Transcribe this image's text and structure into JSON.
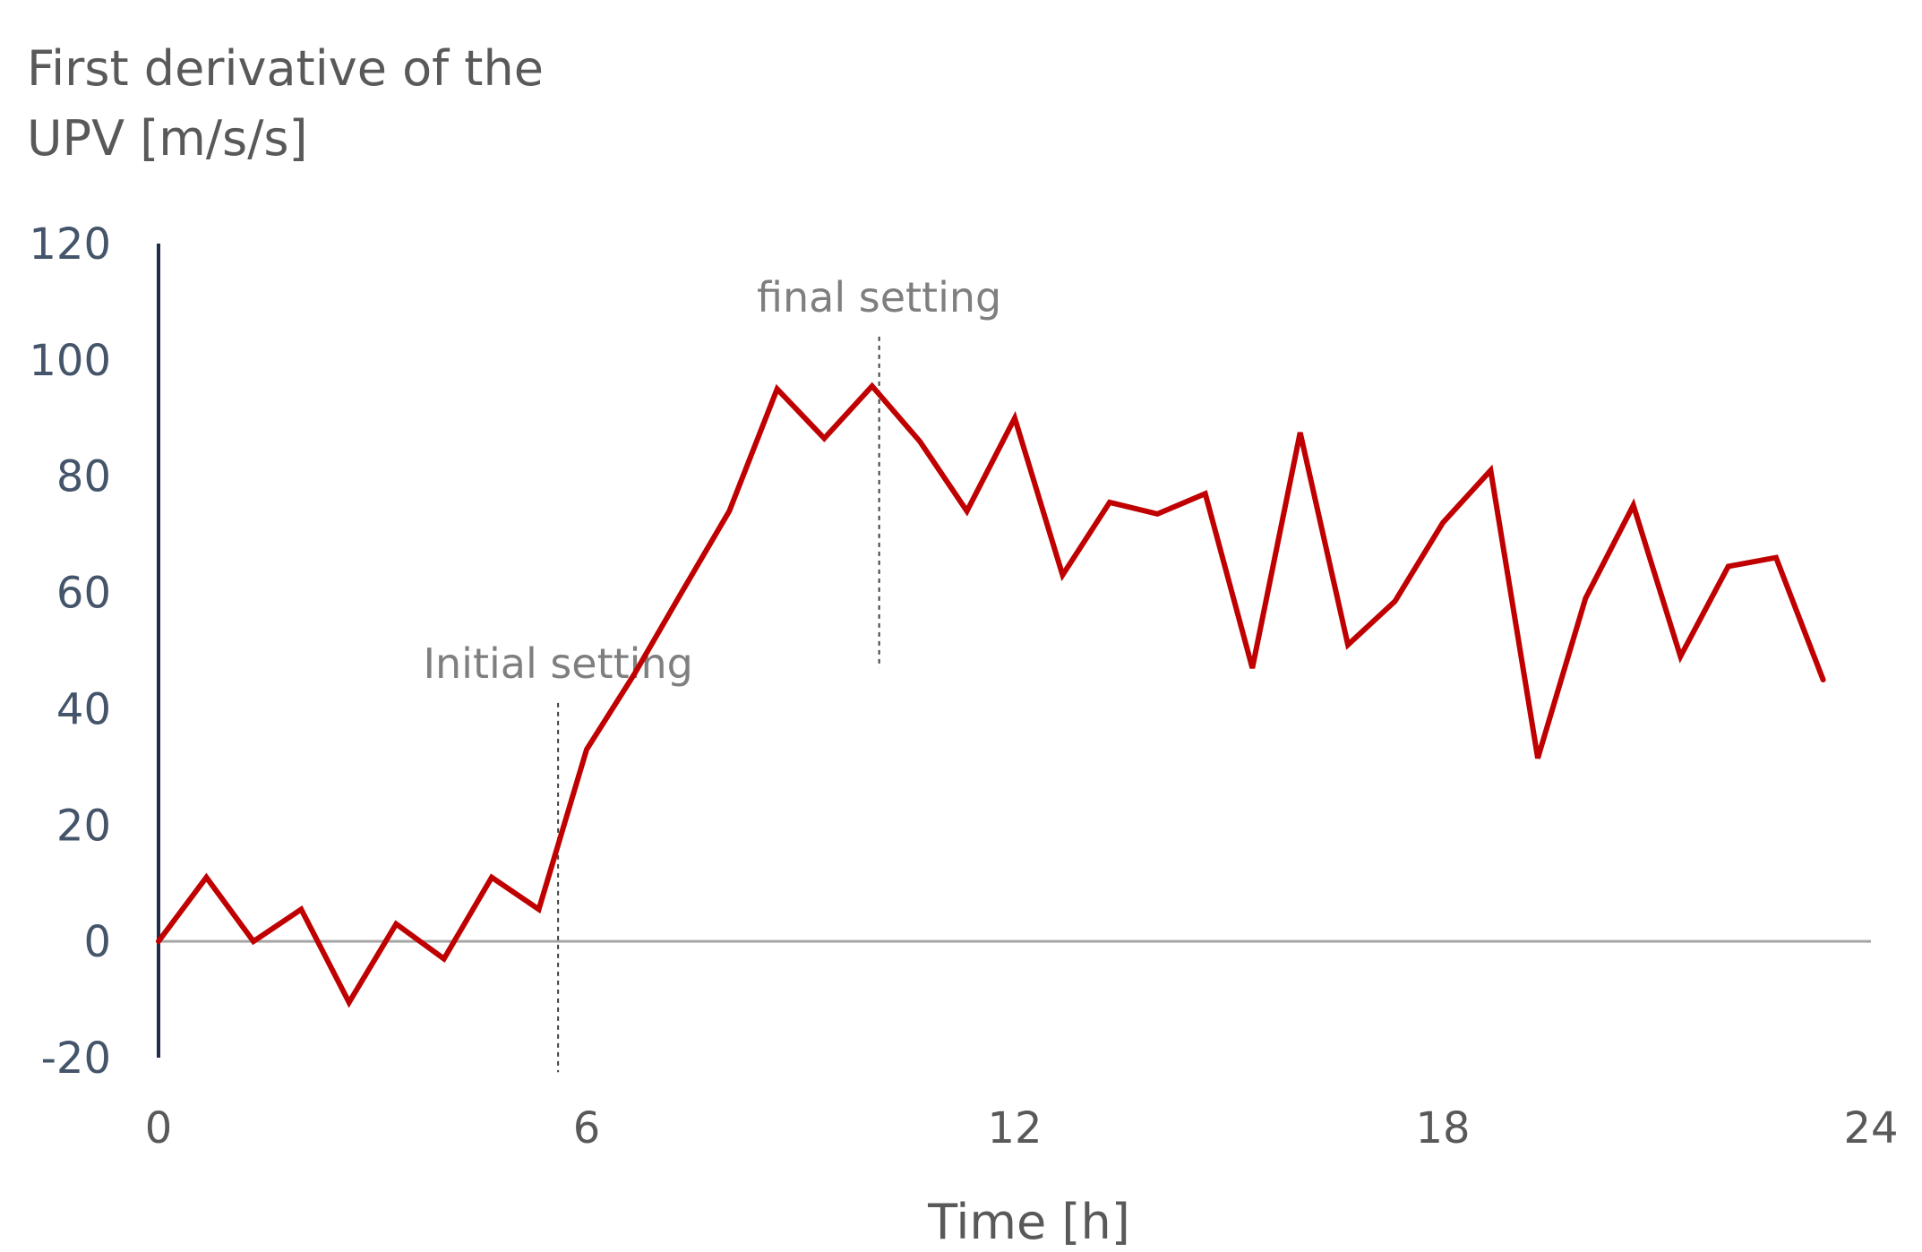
{
  "chart_data": {
    "type": "line",
    "ylabel_lines": [
      "First derivative of the",
      "UPV [m/s/s]"
    ],
    "xlabel": "Time [h]",
    "xlim": [
      0,
      24
    ],
    "ylim": [
      -20,
      120
    ],
    "x_ticks": [
      "0",
      "6",
      "12",
      "18",
      "24"
    ],
    "y_ticks": [
      "-20",
      "0",
      "20",
      "40",
      "60",
      "80",
      "100",
      "120"
    ],
    "grid": false,
    "line_color": "#c00000",
    "zero_line_color": "#a6a6a6",
    "y_axis_color": "#1f2d4a",
    "series": [
      {
        "x": [
          0,
          0.67,
          1.33,
          2,
          2.67,
          3.33,
          4,
          4.67,
          5.33,
          6,
          6.67,
          7.33,
          8,
          8.67,
          9.33,
          10,
          10.67,
          11.33,
          12,
          12.67,
          13.33,
          14,
          14.67,
          15.33,
          16,
          16.67,
          17.33,
          18,
          18.67,
          19.33,
          20,
          20.67,
          21.33,
          22,
          22.67,
          23.33
        ],
        "y": [
          0,
          11,
          0,
          5.5,
          -10.5,
          3,
          -3,
          11,
          5.5,
          33,
          46,
          60,
          74,
          95,
          86.5,
          95.5,
          86,
          74,
          90,
          63,
          75.5,
          73.5,
          77,
          47,
          87.5,
          51,
          58.5,
          72,
          81,
          31.5,
          59,
          75,
          49,
          64.5,
          66,
          45
        ]
      }
    ],
    "annotations": [
      {
        "text": "Initial setting",
        "x": 5.6,
        "y_from": -22.5,
        "y_to": 41
      },
      {
        "text": "final setting",
        "x": 10.1,
        "y_from": 47,
        "y_to": 104
      }
    ]
  }
}
